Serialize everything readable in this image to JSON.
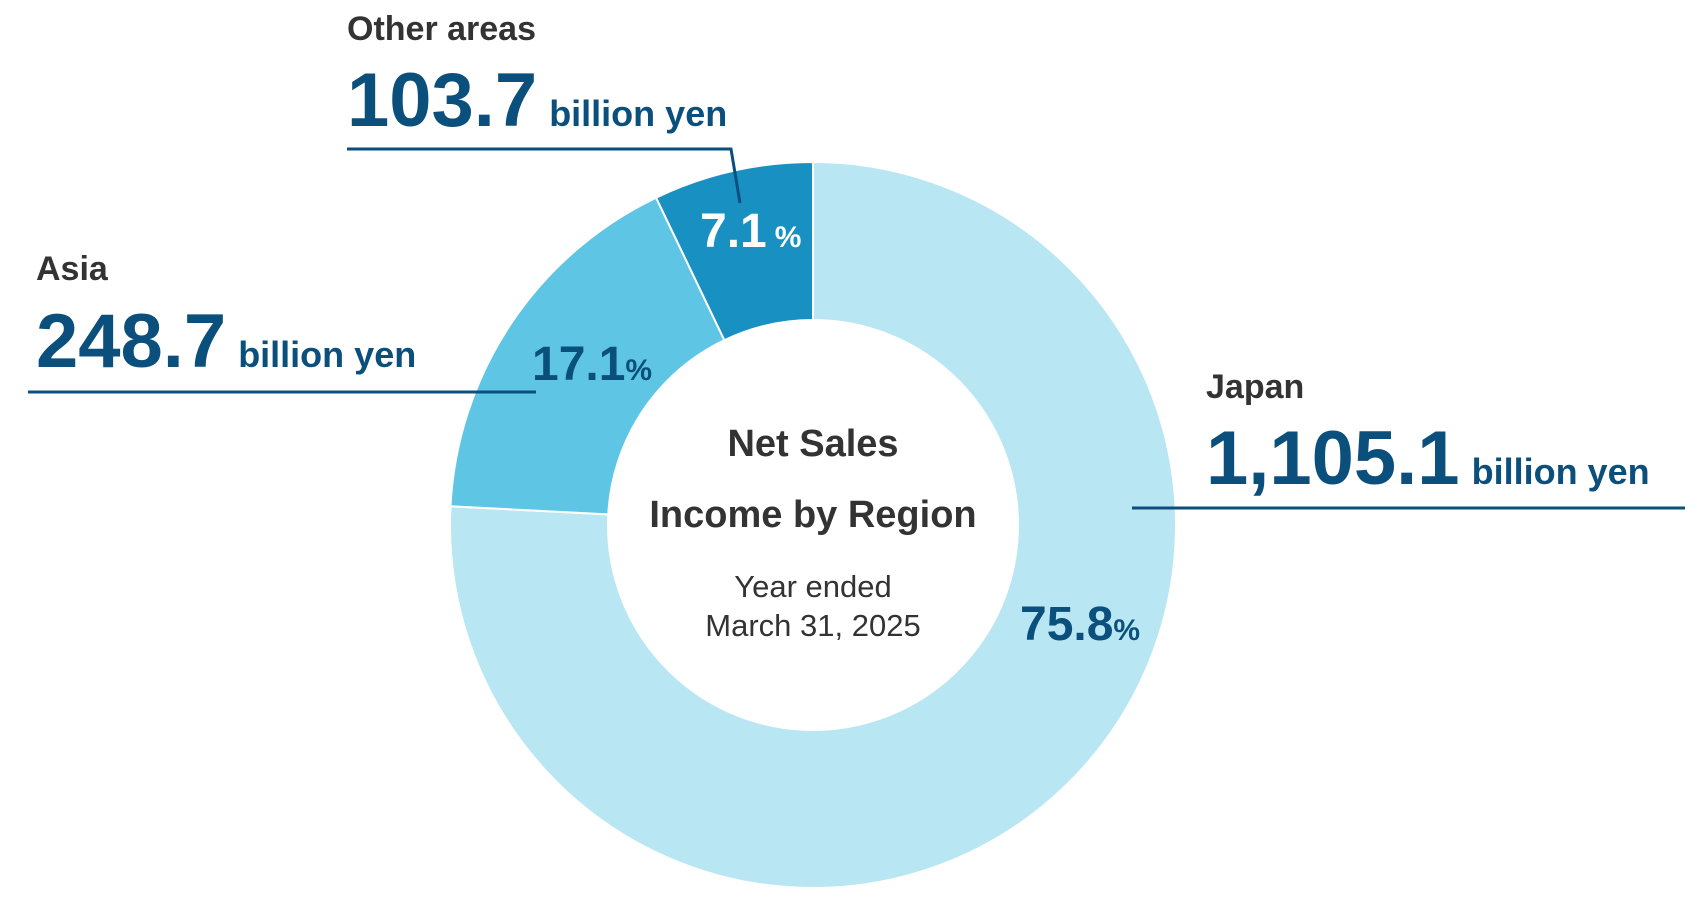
{
  "chart_data": {
    "type": "pie",
    "variant": "donut",
    "title": "Net Sales",
    "subtitle": "Income by Region",
    "period_line1": "Year ended",
    "period_line2": "March 31, 2025",
    "unit": "billion yen",
    "percent_sign": "%",
    "slices": [
      {
        "name": "Japan",
        "value": 1105.1,
        "value_label": "1,105.1",
        "percent": 75.8,
        "percent_label": "75.8",
        "color": "#b8e6f2",
        "pct_color": "#0b4f7c"
      },
      {
        "name": "Asia",
        "value": 248.7,
        "value_label": "248.7",
        "percent": 17.1,
        "percent_label": "17.1",
        "color": "#5ec6e4",
        "pct_color": "#0b4f7c"
      },
      {
        "name": "Other areas",
        "value": 103.7,
        "value_label": "103.7",
        "percent": 7.1,
        "percent_label": "7.1",
        "color": "#1890c2",
        "pct_color": "#ffffff"
      }
    ]
  }
}
